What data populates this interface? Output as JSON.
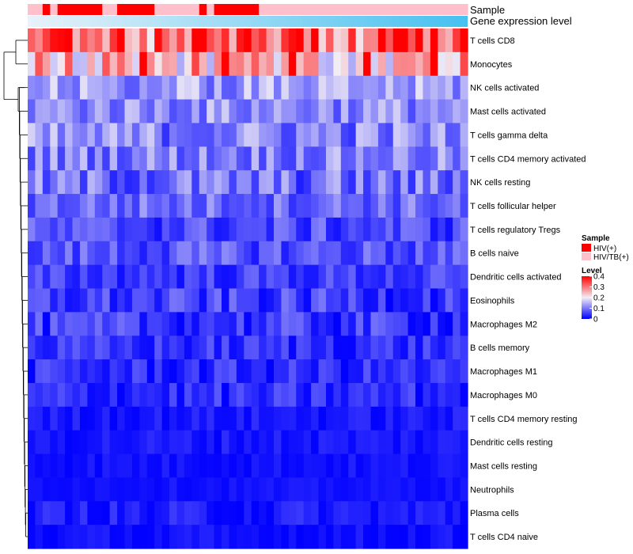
{
  "chart_data": {
    "type": "heatmap",
    "annotation_rows": {
      "sample_label": "Sample",
      "gene_label": "Gene expression level"
    },
    "sample_groups": [
      "P",
      "P",
      "R",
      "P",
      "R",
      "R",
      "R",
      "R",
      "R",
      "R",
      "P",
      "P",
      "R",
      "R",
      "R",
      "R",
      "R",
      "P",
      "P",
      "P",
      "P",
      "P",
      "P",
      "R",
      "P",
      "R",
      "R",
      "R",
      "R",
      "R",
      "R",
      "P",
      "P",
      "P",
      "P",
      "P",
      "P",
      "P",
      "P",
      "P",
      "P",
      "P",
      "P",
      "P",
      "P",
      "P",
      "P",
      "P",
      "P",
      "P",
      "P",
      "P",
      "P",
      "P",
      "P",
      "P",
      "P",
      "P",
      "P"
    ],
    "rows": [
      "T cells CD8",
      "Monocytes",
      "NK cells activated",
      "Mast cells activated",
      "T cells gamma delta",
      "T cells CD4 memory activated",
      "NK cells resting",
      "T cells follicular helper",
      "T cells regulatory  Tregs",
      "B cells naive",
      "Dendritic cells activated",
      "Eosinophils",
      "Macrophages M2",
      "B cells memory",
      "Macrophages M1",
      "Macrophages M0",
      "T cells CD4 memory resting",
      "Dendritic cells resting",
      "Mast cells resting",
      "Neutrophils",
      "Plasma cells",
      "T cells CD4 naive"
    ],
    "color_scale": {
      "low": "#0000ff",
      "mid": "#f2eef5",
      "high": "#ff0000",
      "min": 0,
      "mid_value": 0.2,
      "max": 0.4
    },
    "legend": {
      "sample_title": "Sample",
      "sample_entries": [
        {
          "label": "HIV(+)",
          "color": "#ff0000"
        },
        {
          "label": "HIV/TB(+)",
          "color": "#ffc0cb"
        }
      ],
      "level_title": "Level",
      "level_ticks": [
        "0.4",
        "0.3",
        "0.2",
        "0.1",
        "0"
      ],
      "level_tick_values": [
        0.4,
        0.3,
        0.2,
        0.1,
        0
      ]
    },
    "row_dendrogram": {
      "merges": [
        [
          12,
          13
        ],
        [
          14,
          15
        ],
        [
          3,
          4
        ],
        [
          5,
          6
        ],
        [
          10,
          11
        ],
        [
          16,
          17
        ],
        [
          18,
          19
        ],
        [
          20,
          21
        ],
        [
          8,
          9
        ],
        [
          0,
          1
        ],
        [
          2,
          3
        ],
        [
          4,
          5
        ],
        [
          6,
          7
        ]
      ]
    }
  }
}
